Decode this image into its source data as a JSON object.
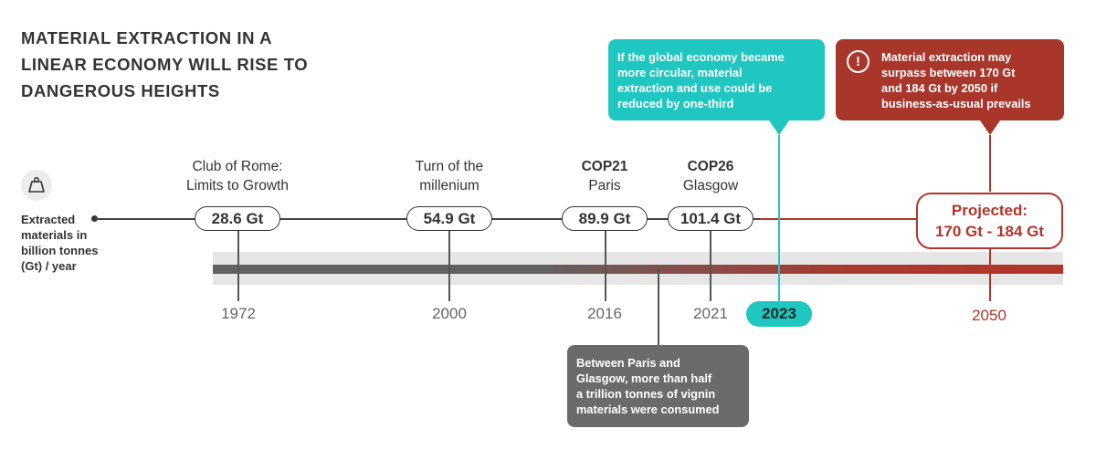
{
  "title": {
    "line1": "MATERIAL EXTRACTION IN A",
    "line2": "LINEAR ECONOMY WILL RISE TO",
    "line3": "DANGEROUS HEIGHTS"
  },
  "y_axis": {
    "icon": "weight-icon",
    "line1": "Extracted",
    "line2": "materials in",
    "line3": "billion tonnes",
    "line4": "(Gt) / year"
  },
  "milestones": [
    {
      "event_line1": "Club of Rome:",
      "event_line2": "Limits to Growth",
      "value": "28.6 Gt",
      "year": "1972"
    },
    {
      "event_line1": "Turn of the",
      "event_line2": "millenium",
      "value": "54.9 Gt",
      "year": "2000"
    },
    {
      "event_line1": "COP21",
      "event_line2": "Paris",
      "value": "89.9 Gt",
      "year": "2016"
    },
    {
      "event_line1": "COP26",
      "event_line2": "Glasgow",
      "value": "101.4 Gt",
      "year": "2021"
    }
  ],
  "current_year": "2023",
  "projection": {
    "line1": "Projected:",
    "line2": "170 Gt - 184 Gt",
    "year": "2050"
  },
  "callouts": {
    "teal": {
      "line1": "If the global economy became",
      "line2": "more circular, material",
      "line3": "extraction and use could be",
      "line4": "reduced by one-third"
    },
    "red": {
      "icon": "warning-icon",
      "line1": "Material extraction may",
      "line2": "surpass between 170 Gt",
      "line3": "and 184 Gt by 2050 if",
      "line4": "business-as-usual prevails"
    },
    "grey": {
      "line1": "Between Paris and",
      "line2": "Glasgow, more than half",
      "line3": "a trillion tonnes of vignin",
      "line4": "materials were consumed"
    }
  },
  "colors": {
    "teal": "#1fc7c0",
    "red": "#b3352a",
    "grey": "#6b6b6b",
    "dark": "#333333"
  }
}
